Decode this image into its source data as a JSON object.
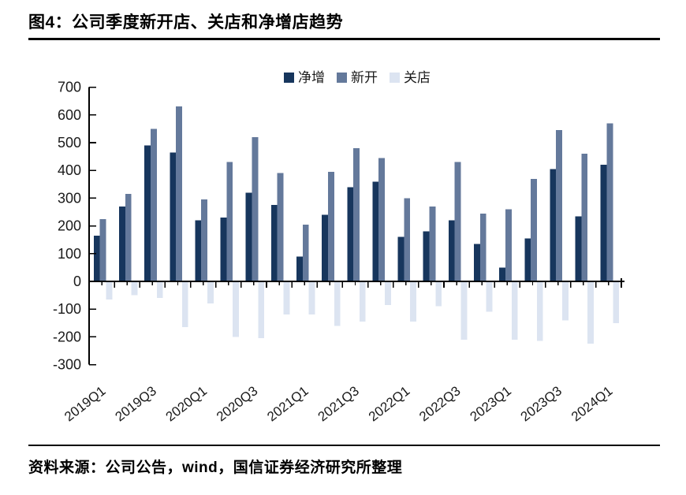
{
  "page": {
    "title": "图4：公司季度新开店、关店和净增店趋势",
    "source": "资料来源：公司公告，wind，国信证券经济研究所整理"
  },
  "chart_data": {
    "type": "bar",
    "title": "",
    "categories": [
      "2019Q1",
      "2019Q2",
      "2019Q3",
      "2019Q4",
      "2020Q1",
      "2020Q2",
      "2020Q3",
      "2020Q4",
      "2021Q1",
      "2021Q2",
      "2021Q3",
      "2021Q4",
      "2022Q1",
      "2022Q2",
      "2022Q3",
      "2022Q4",
      "2023Q1",
      "2023Q2",
      "2023Q3",
      "2023Q4",
      "2024Q1"
    ],
    "x_axis": {
      "labeled_ticks": [
        "2019Q1",
        "2019Q3",
        "2020Q1",
        "2020Q3",
        "2021Q1",
        "2021Q3",
        "2022Q1",
        "2022Q3",
        "2023Q1",
        "2023Q3",
        "2024Q1"
      ],
      "label_every_n": 2,
      "label_rotation_deg": -38
    },
    "y_axis": {
      "min": -300,
      "max": 700,
      "tick_step": 100
    },
    "legend": {
      "position": "top-center",
      "entries": [
        "净增",
        "新开",
        "关店"
      ]
    },
    "grid": false,
    "axis_color": "#000000",
    "tick_label_color": "#1a1a1a",
    "series": [
      {
        "key": "net",
        "name": "净增",
        "color": "#17365D",
        "values": [
          165,
          270,
          490,
          465,
          220,
          230,
          320,
          275,
          90,
          240,
          340,
          360,
          160,
          180,
          220,
          135,
          50,
          155,
          405,
          235,
          420
        ]
      },
      {
        "key": "open",
        "name": "新开",
        "color": "#64799B",
        "values": [
          225,
          315,
          550,
          630,
          295,
          430,
          520,
          390,
          205,
          395,
          480,
          445,
          300,
          270,
          430,
          245,
          260,
          370,
          545,
          460,
          570
        ]
      },
      {
        "key": "close",
        "name": "关店",
        "color": "#DCE4F1",
        "values": [
          -65,
          -50,
          -60,
          -165,
          -80,
          -200,
          -205,
          -120,
          -120,
          -160,
          -145,
          -85,
          -145,
          -90,
          -210,
          -110,
          -210,
          -215,
          -140,
          -225,
          -150
        ]
      }
    ]
  }
}
